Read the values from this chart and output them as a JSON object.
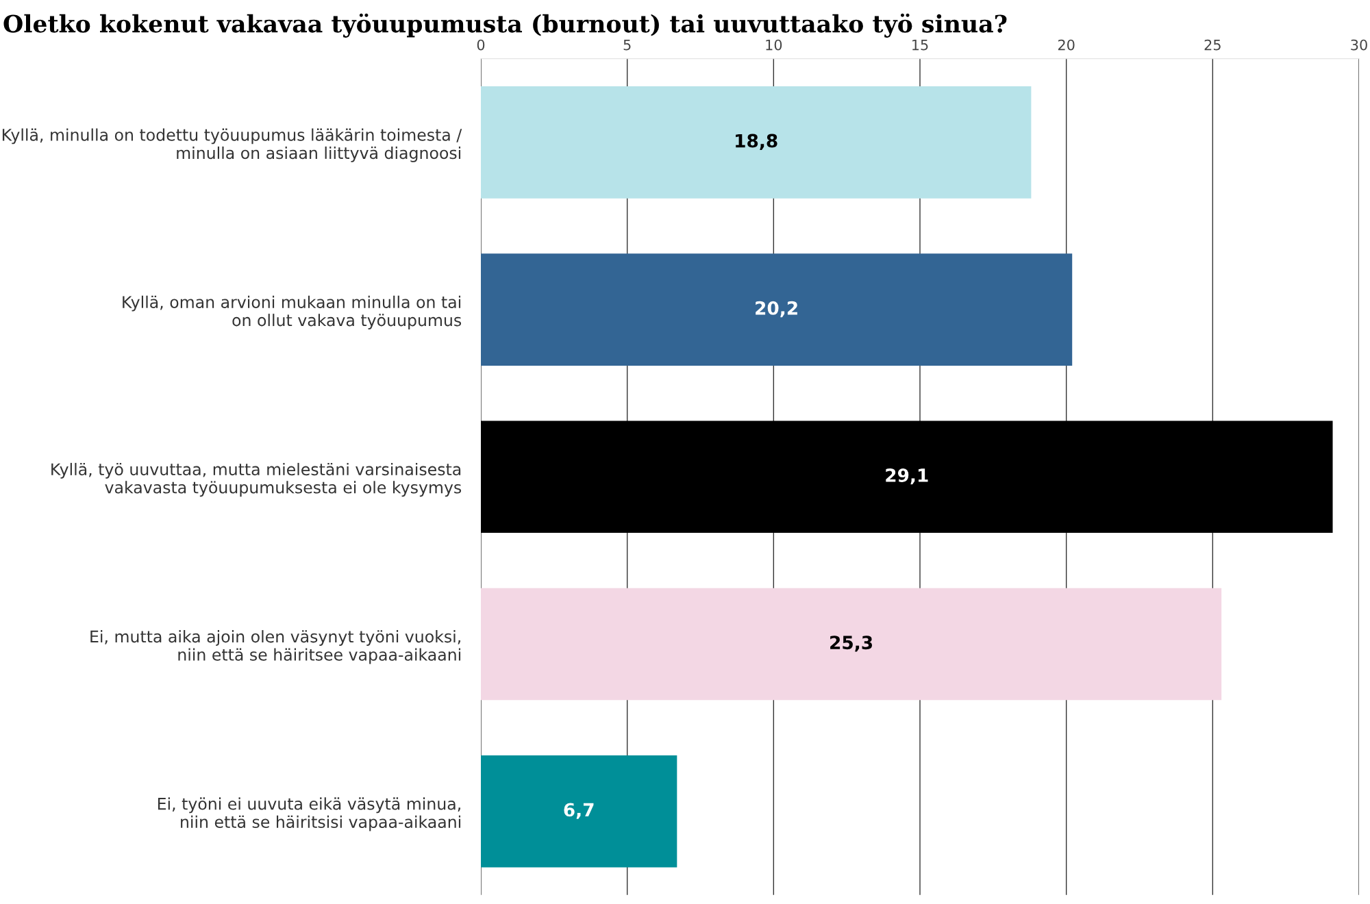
{
  "chart_data": {
    "type": "bar",
    "orientation": "horizontal",
    "title": "Oletko kokenut vakavaa työuupumusta (burnout) tai uuvuttaako työ sinua?",
    "categories": [
      "Kyllä, minulla on todettu työuupumus lääkärin toimesta /\nminulla on asiaan liittyvä diagnoosi",
      "Kyllä, oman arvioni mukaan minulla on tai\non ollut vakava työuupumus",
      "Kyllä, työ uuvuttaa, mutta mielestäni varsinaisesta\nvakavasta työuupumuksesta ei ole kysymys",
      "Ei, mutta aika ajoin olen väsynyt työni vuoksi,\nniin että se häiritsee vapaa-aikaani",
      "Ei, työni ei uuvuta eikä väsytä minua,\nniin että se häiritsisi vapaa-aikaani"
    ],
    "values": [
      18.8,
      20.2,
      29.1,
      25.3,
      6.7
    ],
    "value_labels": [
      "18,8",
      "20,2",
      "29,1",
      "25,3",
      "6,7"
    ],
    "colors": [
      "#b7e3e9",
      "#336594",
      "#000000",
      "#f3d7e4",
      "#008f98"
    ],
    "xlim": [
      0,
      30
    ],
    "xticks": [
      0,
      5,
      10,
      15,
      20,
      25,
      30
    ],
    "grid": "x",
    "legend": false
  }
}
